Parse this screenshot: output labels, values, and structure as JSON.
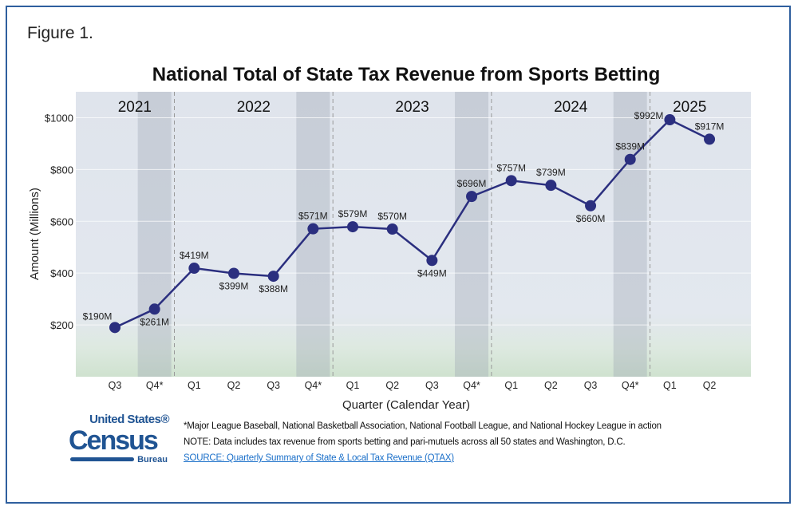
{
  "figure_label": "Figure 1.",
  "chart_data": {
    "type": "line",
    "title": "National Total of State Tax Revenue from Sports Betting",
    "xlabel": "Quarter (Calendar Year)",
    "ylabel": "Amount (Millions)",
    "ylim": [
      0,
      1100
    ],
    "yticks": [
      200,
      400,
      600,
      800,
      1000
    ],
    "ytick_labels": [
      "$200",
      "$400",
      "$600",
      "$800",
      "$1000"
    ],
    "grid": true,
    "categories": [
      "Q3",
      "Q4*",
      "Q1",
      "Q2",
      "Q3",
      "Q4*",
      "Q1",
      "Q2",
      "Q3",
      "Q4*",
      "Q1",
      "Q2",
      "Q3",
      "Q4*",
      "Q1",
      "Q2"
    ],
    "years": [
      {
        "label": "2021",
        "start": 0,
        "end": 1
      },
      {
        "label": "2022",
        "start": 2,
        "end": 5
      },
      {
        "label": "2023",
        "start": 6,
        "end": 9
      },
      {
        "label": "2024",
        "start": 10,
        "end": 13
      },
      {
        "label": "2025",
        "start": 14,
        "end": 15
      }
    ],
    "highlighted_categories": [
      1,
      5,
      9,
      13
    ],
    "values": [
      190,
      261,
      419,
      399,
      388,
      571,
      579,
      570,
      449,
      696,
      757,
      739,
      660,
      839,
      992,
      917
    ],
    "data_labels": [
      "$190M",
      "$261M",
      "$419M",
      "$399M",
      "$388M",
      "$571M",
      "$579M",
      "$570M",
      "$449M",
      "$696M",
      "$757M",
      "$739M",
      "$660M",
      "$839M",
      "$992M",
      "$917M"
    ],
    "line_color": "#2b2f7f"
  },
  "logo": {
    "line1": "United States®",
    "line2": "Census",
    "line3": "Bureau"
  },
  "notes": {
    "footnote": "*Major League Baseball, National Basketball Association, National Football League, and National Hockey League in action",
    "note": "NOTE: Data includes tax revenue from sports betting and pari-mutuels across all 50 states and Washington, D.C.",
    "source": "SOURCE: Quarterly Summary of State & Local Tax Revenue (QTAX)"
  }
}
